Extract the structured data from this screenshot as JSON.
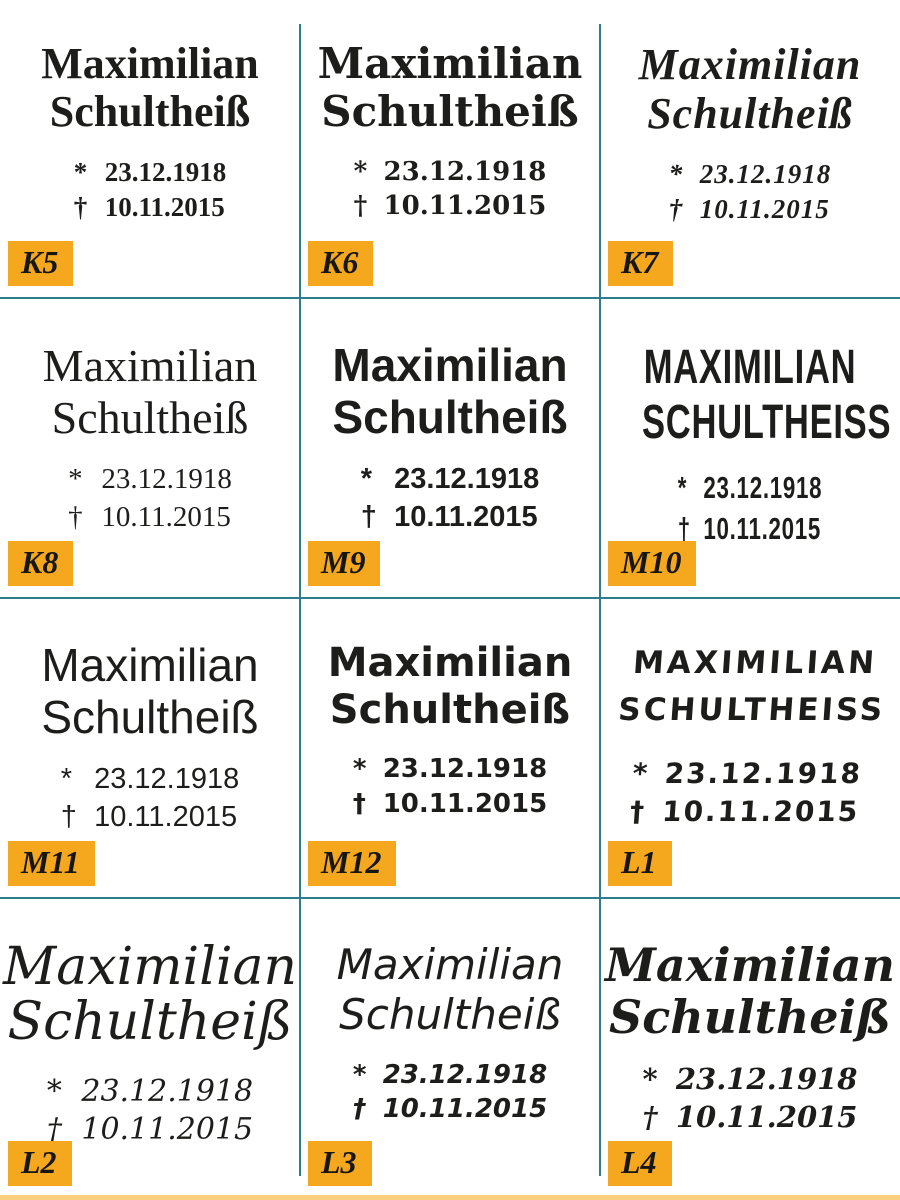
{
  "sheet": {
    "divider_color": "#2a7f8a",
    "badge_color": "#f5a81e",
    "text_color": "#1d1d1b",
    "bottom_strip_color": "#fbcf7e"
  },
  "cells": [
    {
      "label": "K5",
      "name_line1": "Maximilian",
      "name_line2": "Schultheiß",
      "birth": {
        "symbol": "*",
        "date": "23.12.1918"
      },
      "death": {
        "symbol": "†",
        "date": "10.11.2015"
      },
      "font_style": "bold serif"
    },
    {
      "label": "K6",
      "name_line1": "Maximilian",
      "name_line2": "Schultheiß",
      "birth": {
        "symbol": "*",
        "date": "23.12.1918"
      },
      "death": {
        "symbol": "†",
        "date": "10.11.2015"
      },
      "font_style": "bold slab serif"
    },
    {
      "label": "K7",
      "name_line1": "Maximilian",
      "name_line2": "Schultheiß",
      "birth": {
        "symbol": "*",
        "date": "23.12.1918"
      },
      "death": {
        "symbol": "†",
        "date": "10.11.2015"
      },
      "font_style": "bold italic serif"
    },
    {
      "label": "K8",
      "name_line1": "Maximilian",
      "name_line2": "Schultheiß",
      "birth": {
        "symbol": "*",
        "date": "23.12.1918"
      },
      "death": {
        "symbol": "†",
        "date": "10.11.2015"
      },
      "font_style": "regular serif"
    },
    {
      "label": "M9",
      "name_line1": "Maximilian",
      "name_line2": "Schultheiß",
      "birth": {
        "symbol": "*",
        "date": "23.12.1918"
      },
      "death": {
        "symbol": "†",
        "date": "10.11.2015"
      },
      "font_style": "bold sans-serif"
    },
    {
      "label": "M10",
      "name_line1": "Maximilian",
      "name_line2": "Schultheiss",
      "birth": {
        "symbol": "*",
        "date": "23.12.1918"
      },
      "death": {
        "symbol": "†",
        "date": "10.11.2015"
      },
      "font_style": "condensed uppercase sans-serif"
    },
    {
      "label": "M11",
      "name_line1": "Maximilian",
      "name_line2": "Schultheiß",
      "birth": {
        "symbol": "*",
        "date": "23.12.1918"
      },
      "death": {
        "symbol": "†",
        "date": "10.11.2015"
      },
      "font_style": "regular sans-serif"
    },
    {
      "label": "M12",
      "name_line1": "Maximilian",
      "name_line2": "Schultheiß",
      "birth": {
        "symbol": "*",
        "date": "23.12.1918"
      },
      "death": {
        "symbol": "†",
        "date": "10.11.2015"
      },
      "font_style": "rounded bold sans-serif"
    },
    {
      "label": "L1",
      "name_line1": "Maximilian",
      "name_line2": "Schultheiss",
      "birth": {
        "symbol": "*",
        "date": "23.12.1918"
      },
      "death": {
        "symbol": "†",
        "date": "10.11.2015"
      },
      "font_style": "handwritten marker capitals"
    },
    {
      "label": "L2",
      "name_line1": "Maximilian",
      "name_line2": "Schultheiß",
      "birth": {
        "symbol": "*",
        "date": "23.12.1918"
      },
      "death": {
        "symbol": "†",
        "date": "10.11.2015"
      },
      "font_style": "calligraphic script"
    },
    {
      "label": "L3",
      "name_line1": "Maximilian",
      "name_line2": "Schultheiß",
      "birth": {
        "symbol": "*",
        "date": "23.12.1918"
      },
      "death": {
        "symbol": "†",
        "date": "10.11.2015"
      },
      "font_style": "casual handwriting"
    },
    {
      "label": "L4",
      "name_line1": "Maximilian",
      "name_line2": "Schultheiß",
      "birth": {
        "symbol": "*",
        "date": "23.12.1918"
      },
      "death": {
        "symbol": "†",
        "date": "10.11.2015"
      },
      "font_style": "bold italic script"
    }
  ]
}
